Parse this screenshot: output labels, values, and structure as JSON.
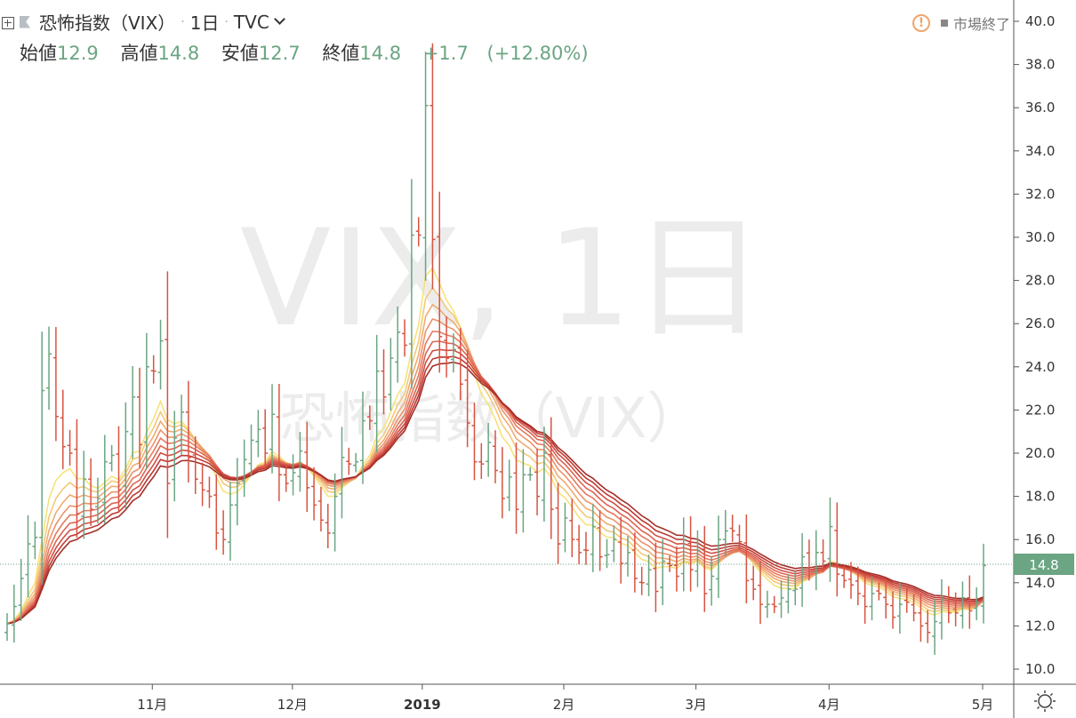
{
  "header": {
    "symbol_name": "恐怖指数（VIX）",
    "interval": "1日",
    "exchange": "TVC",
    "market_status": "市場終了"
  },
  "ohlc": {
    "open_label": "始値",
    "open": "12.9",
    "high_label": "高値",
    "high": "14.8",
    "low_label": "安値",
    "low": "12.7",
    "close_label": "終値",
    "close": "14.8",
    "change": "+1.7",
    "change_pct": "(+12.80%)"
  },
  "watermark": {
    "line1": "VIX, 1日",
    "line2": "恐怖指数（VIX）"
  },
  "colors": {
    "up": "#6ba583",
    "down": "#d75442",
    "last_price_bg": "#6ba583",
    "ribbon": [
      "#f7e27a",
      "#f4c87a",
      "#f0ab72",
      "#ec936b",
      "#e57a60",
      "#dd6452",
      "#d14f44",
      "#be3a34",
      "#a52f28"
    ]
  },
  "chart_data": {
    "type": "ohlc",
    "y_axis": {
      "min": 10,
      "max": 40,
      "ticks": [
        "10.0",
        "12.0",
        "14.0",
        "16.0",
        "18.0",
        "20.0",
        "22.0",
        "24.0",
        "26.0",
        "28.0",
        "30.0",
        "32.0",
        "34.0",
        "36.0",
        "38.0",
        "40.0"
      ]
    },
    "x_axis": {
      "labels": [
        "11月",
        "12月",
        "2019",
        "2月",
        "3月",
        "4月",
        "5月"
      ]
    },
    "last_price": "14.8",
    "ribbon_series": [
      "EMA1",
      "EMA2",
      "EMA3",
      "EMA4",
      "EMA5",
      "EMA6",
      "EMA7",
      "EMA8",
      "EMA9"
    ],
    "close": [
      12.1,
      12.9,
      14.2,
      15.8,
      16.1,
      22.9,
      24.6,
      21.7,
      20.3,
      20.0,
      17.2,
      18.8,
      17.4,
      17.9,
      19.6,
      19.9,
      18.3,
      21.0,
      22.6,
      20.4,
      24.0,
      23.8,
      25.2,
      18.6,
      20.7,
      21.9,
      19.8,
      18.8,
      18.3,
      18.0,
      16.3,
      16.0,
      17.6,
      18.6,
      19.7,
      20.6,
      21.1,
      20.0,
      21.8,
      19.0,
      18.6,
      19.1,
      20.1,
      18.4,
      17.6,
      16.9,
      16.3,
      18.0,
      19.8,
      19.5,
      19.6,
      21.5,
      21.5,
      23.8,
      22.6,
      24.4,
      25.6,
      25.0,
      30.1,
      30.1,
      36.1,
      29.9,
      25.4,
      24.4,
      24.8,
      23.2,
      21.4,
      19.6,
      19.5,
      20.5,
      19.2,
      17.9,
      18.9,
      17.4,
      19.0,
      19.0,
      18.0,
      20.0,
      17.4,
      15.8,
      17.0,
      16.0,
      15.4,
      15.5,
      16.6,
      15.2,
      15.3,
      16.0,
      14.9,
      15.4,
      14.2,
      14.0,
      14.6,
      13.6,
      15.0,
      14.8,
      14.3,
      16.0,
      14.6,
      15.5,
      13.5,
      14.3,
      16.0,
      16.4,
      16.4,
      15.9,
      14.1,
      13.7,
      13.0,
      13.0,
      12.9,
      13.3,
      13.7,
      13.7,
      15.2,
      14.6,
      15.4,
      15.0,
      16.6,
      14.4,
      14.1,
      13.9,
      13.5,
      12.9,
      13.5,
      13.5,
      13.0,
      12.4,
      13.0,
      13.1,
      12.6,
      12.0,
      11.7,
      12.2,
      13.2,
      12.6,
      12.6,
      13.3,
      12.7,
      13.1,
      14.8
    ]
  }
}
